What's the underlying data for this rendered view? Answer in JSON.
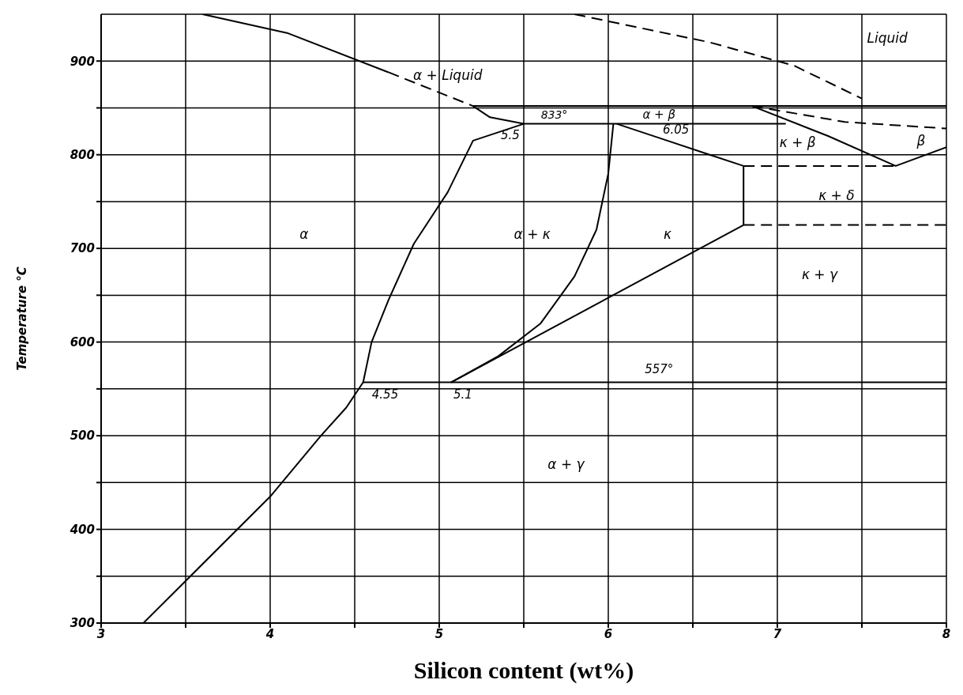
{
  "chart_data": {
    "type": "line",
    "xlabel": "Silicon content (wt%)",
    "ylabel": "Temperature °C",
    "xlim": [
      3,
      8
    ],
    "ylim": [
      300,
      950
    ],
    "xticks": [
      3,
      {
        "value": 3.5,
        "label": null
      },
      4,
      {
        "value": 4.5,
        "label": null
      },
      5,
      {
        "value": 5.5,
        "label": null
      },
      6,
      {
        "value": 6.5,
        "label": null
      },
      7,
      {
        "value": 7.5,
        "label": null
      },
      8
    ],
    "yticks": [
      300,
      {
        "value": 350,
        "label": null
      },
      400,
      {
        "value": 450,
        "label": null
      },
      500,
      {
        "value": 550,
        "label": null
      },
      600,
      {
        "value": 650,
        "label": null
      },
      700,
      {
        "value": 750,
        "label": null
      },
      800,
      {
        "value": 850,
        "label": null
      },
      900
    ],
    "grid": true,
    "marker": "none",
    "line_style": "solid",
    "series": [
      {
        "color": "#000000",
        "x": [
          3.6,
          4.1,
          4.7
        ],
        "values": [
          950,
          930,
          888
        ]
      },
      {
        "color": "#000000",
        "line_style": "dashed",
        "x": [
          4.7,
          5.2
        ],
        "values": [
          888,
          852
        ]
      },
      {
        "color": "#000000",
        "x": [
          8,
          5.2,
          5.3,
          5.5,
          7.05
        ],
        "values": [
          852,
          852,
          840,
          833,
          833
        ]
      },
      {
        "color": "#000000",
        "x": [
          5.5,
          5.2,
          5.05,
          4.85,
          4.7,
          4.6,
          4.55,
          4.45,
          4.3,
          4.0,
          3.5,
          3.25
        ],
        "values": [
          833,
          815,
          760,
          705,
          645,
          600,
          557,
          530,
          500,
          435,
          345,
          300
        ]
      },
      {
        "color": "#000000",
        "x": [
          4.55,
          8
        ],
        "values": [
          557,
          557
        ]
      },
      {
        "color": "#000000",
        "x": [
          6.03,
          6.0,
          5.93,
          5.8,
          5.6,
          5.35,
          5.07
        ],
        "values": [
          833,
          780,
          720,
          670,
          620,
          585,
          557
        ]
      },
      {
        "color": "#000000",
        "x": [
          5.07,
          6.8
        ],
        "values": [
          557,
          725
        ]
      },
      {
        "color": "#000000",
        "x": [
          6.05,
          6.3,
          6.6,
          6.8,
          6.8
        ],
        "values": [
          833,
          818,
          800,
          788,
          725
        ]
      },
      {
        "color": "#000000",
        "line_style": "dashed",
        "x": [
          6.8,
          7.7
        ],
        "values": [
          788,
          788
        ]
      },
      {
        "color": "#000000",
        "line_style": "dashed",
        "x": [
          6.8,
          8
        ],
        "values": [
          725,
          725
        ]
      },
      {
        "color": "#000000",
        "x": [
          6.85,
          7.3,
          7.7,
          8
        ],
        "values": [
          852,
          820,
          788,
          808
        ]
      },
      {
        "color": "#000000",
        "line_style": "dashed",
        "x": [
          5.8,
          6.6,
          7.1,
          7.5
        ],
        "values": [
          950,
          920,
          895,
          860
        ]
      },
      {
        "color": "#000000",
        "line_style": "dashed",
        "x": [
          6.85,
          7.4,
          8
        ],
        "values": [
          852,
          835,
          828
        ]
      }
    ],
    "annotations": [
      "Liquid",
      "α + Liquid",
      "α",
      "α + κ",
      "κ",
      "κ + β",
      "β",
      "κ + δ",
      "κ + γ",
      "α + γ",
      "833°",
      "5.5",
      "α + β",
      "6.05",
      "557°",
      "4.55",
      "5.1"
    ]
  }
}
